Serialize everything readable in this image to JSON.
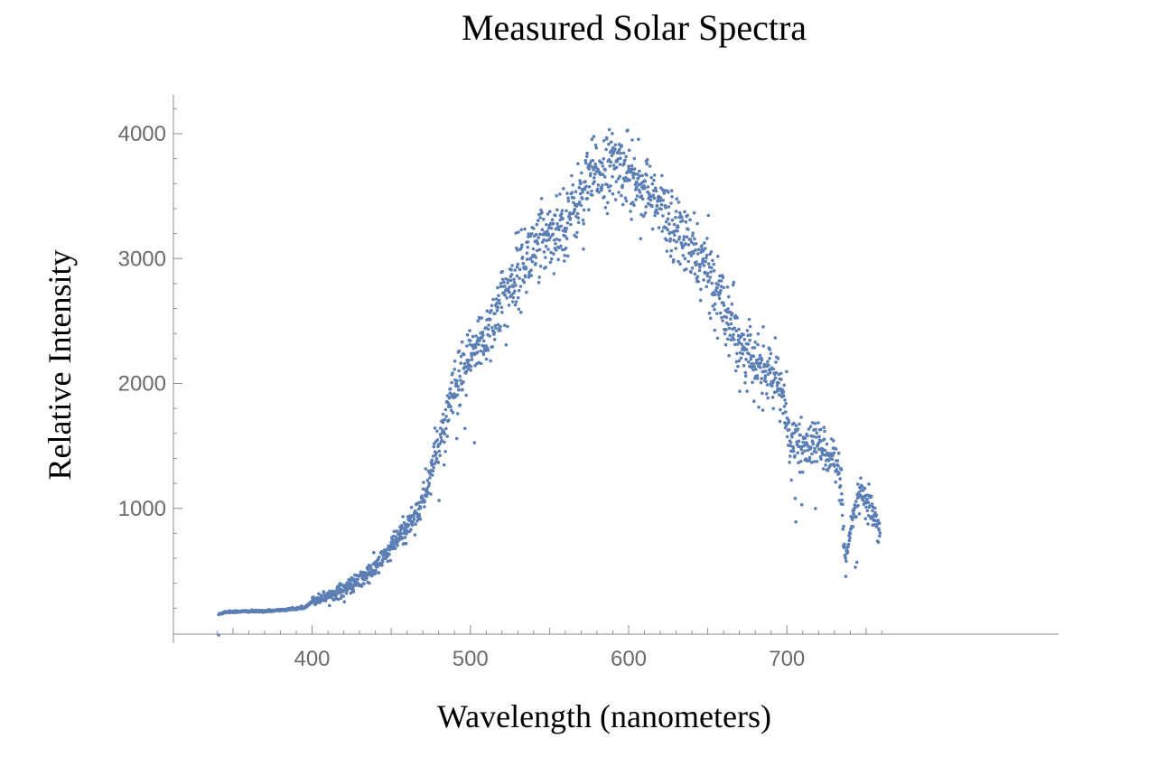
{
  "chart_data": {
    "type": "scatter",
    "title": "Measured Solar Spectra",
    "xlabel": "Wavelength (nanometers)",
    "ylabel": "Relative Intensity",
    "xlim": [
      340,
      760
    ],
    "ylim": [
      0,
      4300
    ],
    "x_ticks": [
      400,
      500,
      600,
      700
    ],
    "y_ticks": [
      1000,
      2000,
      3000,
      4000
    ],
    "x_tick_labels": [
      "400",
      "500",
      "600",
      "700"
    ],
    "y_tick_labels": [
      "1000",
      "2000",
      "3000",
      "4000"
    ],
    "grid": false,
    "legend": "none",
    "marker_color": "#5b7fb5",
    "profile": [
      [
        341,
        150
      ],
      [
        345,
        170
      ],
      [
        355,
        175
      ],
      [
        365,
        176
      ],
      [
        375,
        180
      ],
      [
        385,
        190
      ],
      [
        395,
        205
      ],
      [
        400,
        255
      ],
      [
        410,
        300
      ],
      [
        420,
        350
      ],
      [
        430,
        420
      ],
      [
        440,
        520
      ],
      [
        450,
        680
      ],
      [
        460,
        850
      ],
      [
        470,
        1050
      ],
      [
        480,
        1520
      ],
      [
        490,
        1950
      ],
      [
        500,
        2200
      ],
      [
        510,
        2400
      ],
      [
        520,
        2650
      ],
      [
        530,
        2900
      ],
      [
        540,
        3080
      ],
      [
        550,
        3220
      ],
      [
        560,
        3300
      ],
      [
        570,
        3500
      ],
      [
        580,
        3700
      ],
      [
        590,
        3740
      ],
      [
        600,
        3720
      ],
      [
        610,
        3560
      ],
      [
        620,
        3400
      ],
      [
        630,
        3250
      ],
      [
        640,
        3050
      ],
      [
        650,
        2900
      ],
      [
        660,
        2650
      ],
      [
        670,
        2350
      ],
      [
        680,
        2130
      ],
      [
        690,
        2080
      ],
      [
        698,
        1900
      ],
      [
        702,
        1550
      ],
      [
        710,
        1480
      ],
      [
        720,
        1520
      ],
      [
        730,
        1400
      ],
      [
        734,
        1200
      ],
      [
        737,
        500
      ],
      [
        740,
        820
      ],
      [
        745,
        1100
      ],
      [
        750,
        1060
      ],
      [
        755,
        920
      ],
      [
        760,
        720
      ]
    ]
  }
}
